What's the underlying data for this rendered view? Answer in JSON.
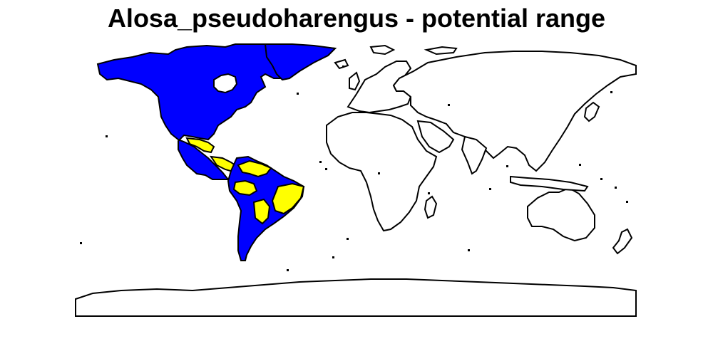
{
  "title": "Alosa_pseudoharengus - potential range",
  "legend_colors": {
    "native_range": "#0000ff",
    "potential_range": "#ffff00",
    "outline": "#000000",
    "background": "#ffffff"
  }
}
